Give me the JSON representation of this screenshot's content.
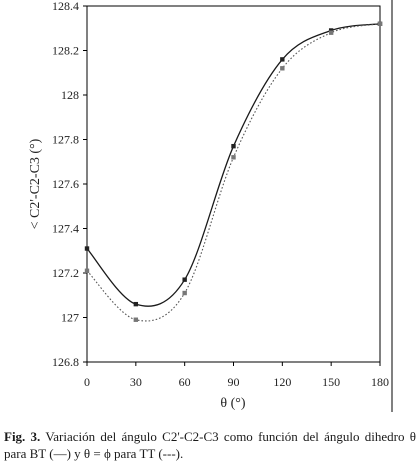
{
  "chart_data": {
    "type": "line",
    "xlabel": "θ (°)",
    "ylabel": "< C2'-C2-C3 (°)",
    "xlim": [
      0,
      180
    ],
    "ylim": [
      126.8,
      128.4
    ],
    "x_ticks": [
      "0",
      "30",
      "60",
      "90",
      "120",
      "150",
      "180"
    ],
    "y_ticks": [
      "126.8",
      "127",
      "127.2",
      "127.4",
      "127.6",
      "127.8",
      "128",
      "128.2",
      "128.4"
    ],
    "grid": false,
    "series": [
      {
        "line_style": "solid",
        "color": "#1a1a1a",
        "x": [
          0,
          30,
          60,
          90,
          120,
          150,
          180
        ],
        "y": [
          127.31,
          127.06,
          127.17,
          127.77,
          128.16,
          128.29,
          128.32
        ]
      },
      {
        "line_style": "dotted",
        "color": "#555555",
        "x": [
          0,
          30,
          60,
          90,
          120,
          150,
          180
        ],
        "y": [
          127.21,
          126.99,
          127.11,
          127.72,
          128.12,
          128.28,
          128.32
        ]
      }
    ]
  },
  "caption": {
    "label": "Fig. 3.",
    "text": " Variación del ángulo C2'-C2-C3 como función del ángulo dihedro θ para BT (—) y θ = ϕ para TT (---)."
  }
}
